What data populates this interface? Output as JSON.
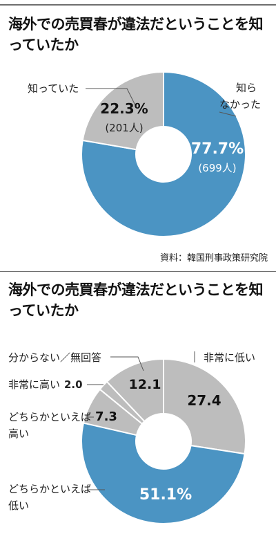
{
  "chart_data": [
    {
      "type": "pie",
      "title": "海外での売買春が違法だということを知っていたか",
      "slices": [
        {
          "label": "知らなかった",
          "value": 77.7,
          "count": "(699人)",
          "color": "#4b94c3"
        },
        {
          "label": "知っていた",
          "value": 22.3,
          "count": "(201人)",
          "color": "#bdbdbd"
        }
      ],
      "source": "資料：韓国刑事政策研究院"
    },
    {
      "type": "pie",
      "title": "海外での売買春が違法だということを知っていたか",
      "slices": [
        {
          "label": "非常に低い",
          "value": 27.4,
          "color": "#bdbdbd"
        },
        {
          "label": "どちらかといえば低い",
          "value": 51.1,
          "color": "#4b94c3"
        },
        {
          "label": "どちらかといえば高い",
          "value": 7.3,
          "color": "#bdbdbd"
        },
        {
          "label": "非常に高い",
          "value": 2.0,
          "color": "#bdbdbd"
        },
        {
          "label": "分からない／無回答",
          "value": 12.1,
          "color": "#bdbdbd"
        }
      ]
    }
  ],
  "texts": {
    "c1_label_known": "知っていた",
    "c1_label_unknown_1": "知ら",
    "c1_label_unknown_2": "なかった",
    "c1_known_pct": "22.3%",
    "c1_unknown_pct": "77.7%",
    "c2_label_very_low": "非常に低い",
    "c2_label_rather_low_1": "どちらかといえば",
    "c2_label_rather_low_2": "低い",
    "c2_label_rather_high_1": "どちらかといえば",
    "c2_label_rather_high_2": "高い",
    "c2_label_very_high": "非常に高い",
    "c2_value_very_high": "2.0",
    "c2_label_unknown": "分からない／無回答",
    "c2_very_low_val": "27.4",
    "c2_rather_low_val": "51.1%",
    "c2_rather_high_val": "7.3",
    "c2_unknown_val": "12.1"
  }
}
